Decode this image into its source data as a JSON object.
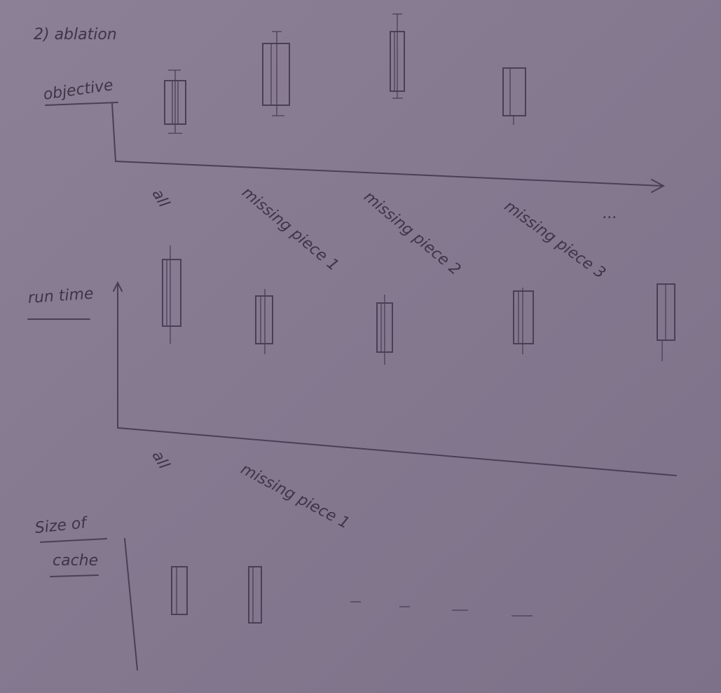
{
  "header": {
    "title": "2) ablation"
  },
  "panels": [
    {
      "y_label": [
        "objective"
      ],
      "x_labels": [
        "all",
        "missing piece 1",
        "missing piece 2",
        "missing piece 3",
        "..."
      ]
    },
    {
      "y_label": [
        "run time"
      ],
      "x_labels": [
        "all",
        "missing piece 1"
      ]
    },
    {
      "y_label": [
        "Size of",
        "cache"
      ],
      "x_labels": []
    }
  ]
}
